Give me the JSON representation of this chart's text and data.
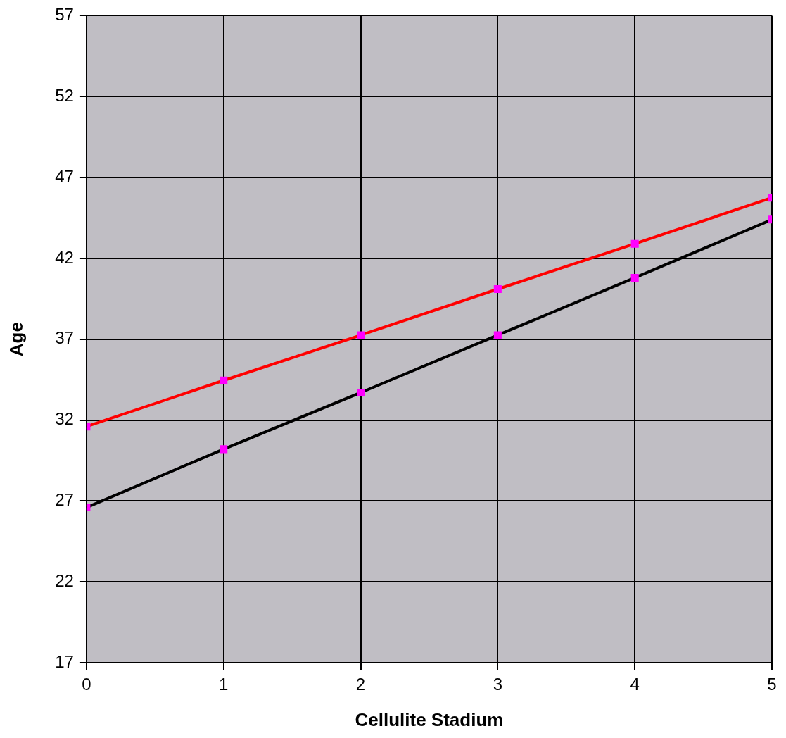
{
  "chart_data": {
    "type": "line",
    "xlabel": "Cellulite Stadium",
    "ylabel": "Age",
    "x": [
      0,
      1,
      2,
      3,
      4,
      5
    ],
    "series": [
      {
        "color": "#ff0000",
        "values": [
          31.6,
          34.45,
          37.25,
          40.1,
          42.9,
          45.75
        ]
      },
      {
        "color": "#000000",
        "values": [
          26.6,
          30.2,
          33.7,
          37.25,
          40.8,
          44.4
        ]
      }
    ],
    "xlim": [
      0,
      5
    ],
    "xticks": [
      0,
      1,
      2,
      3,
      4,
      5
    ],
    "ylim": [
      17,
      57
    ],
    "yticks": [
      17,
      22,
      27,
      32,
      37,
      42,
      47,
      52,
      57
    ],
    "grid": true,
    "legend": false,
    "marker": "square",
    "line_style": "solid"
  }
}
